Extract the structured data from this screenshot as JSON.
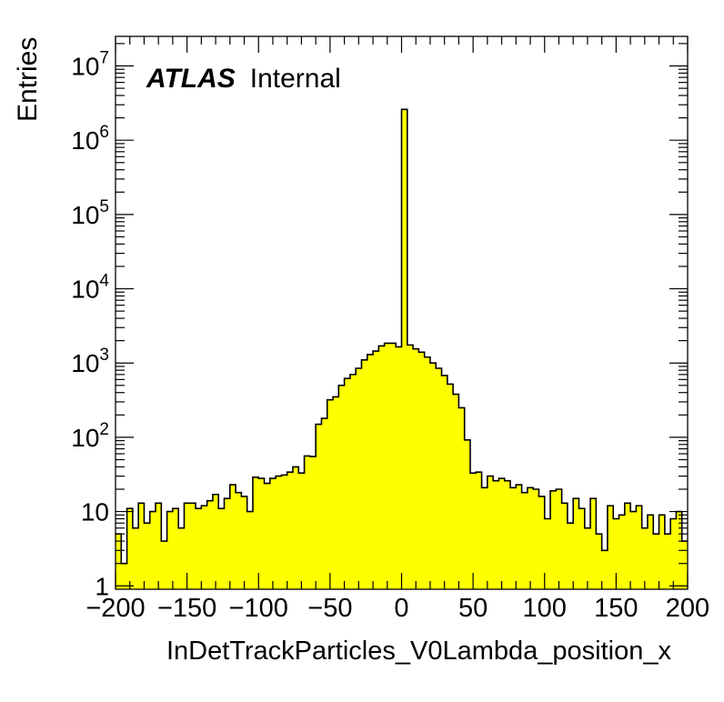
{
  "chart_data": {
    "type": "histogram",
    "title": "",
    "xlabel": "InDetTrackParticles_V0Lambda_position_x",
    "ylabel": "Entries",
    "xlim": [
      -200,
      200
    ],
    "ylim": [
      0.9,
      25000000
    ],
    "yscale": "log",
    "bin_width": 4,
    "x_ticks": [
      "−200",
      "−150",
      "−100",
      "−50",
      "0",
      "50",
      "100",
      "150",
      "200"
    ],
    "x_tick_values": [
      -200,
      -150,
      -100,
      -50,
      0,
      50,
      100,
      150,
      200
    ],
    "y_ticks": [
      {
        "value": 1,
        "base": "1",
        "exp": ""
      },
      {
        "value": 10,
        "base": "10",
        "exp": ""
      },
      {
        "value": 100,
        "base": "10",
        "exp": "2"
      },
      {
        "value": 1000,
        "base": "10",
        "exp": "3"
      },
      {
        "value": 10000,
        "base": "10",
        "exp": "4"
      },
      {
        "value": 100000,
        "base": "10",
        "exp": "5"
      },
      {
        "value": 1000000,
        "base": "10",
        "exp": "6"
      },
      {
        "value": 10000000,
        "base": "10",
        "exp": "7"
      }
    ],
    "fill_color": "#ffff00",
    "line_color": "#000000",
    "values": [
      5,
      2,
      11,
      6,
      13,
      7,
      10,
      13,
      4,
      10,
      11,
      6,
      13,
      13,
      11,
      12,
      14,
      17,
      11,
      15,
      23,
      18,
      16,
      10,
      29,
      28,
      24,
      28,
      30,
      31,
      34,
      40,
      33,
      56,
      55,
      150,
      180,
      320,
      350,
      500,
      620,
      700,
      850,
      1100,
      1300,
      1450,
      1700,
      1850,
      1850,
      1650,
      2600000,
      1750,
      1550,
      1400,
      1200,
      1000,
      850,
      680,
      520,
      380,
      250,
      92,
      33,
      34,
      21,
      30,
      26,
      28,
      26,
      21,
      23,
      18,
      21,
      20,
      16,
      8,
      19,
      20,
      13,
      7,
      15,
      11,
      6,
      15,
      5,
      3,
      12,
      8,
      9,
      13,
      10,
      12,
      6,
      9,
      5,
      9,
      5,
      8,
      10,
      4
    ],
    "annotation": {
      "bold": "ATLAS",
      "normal": "Internal"
    }
  }
}
